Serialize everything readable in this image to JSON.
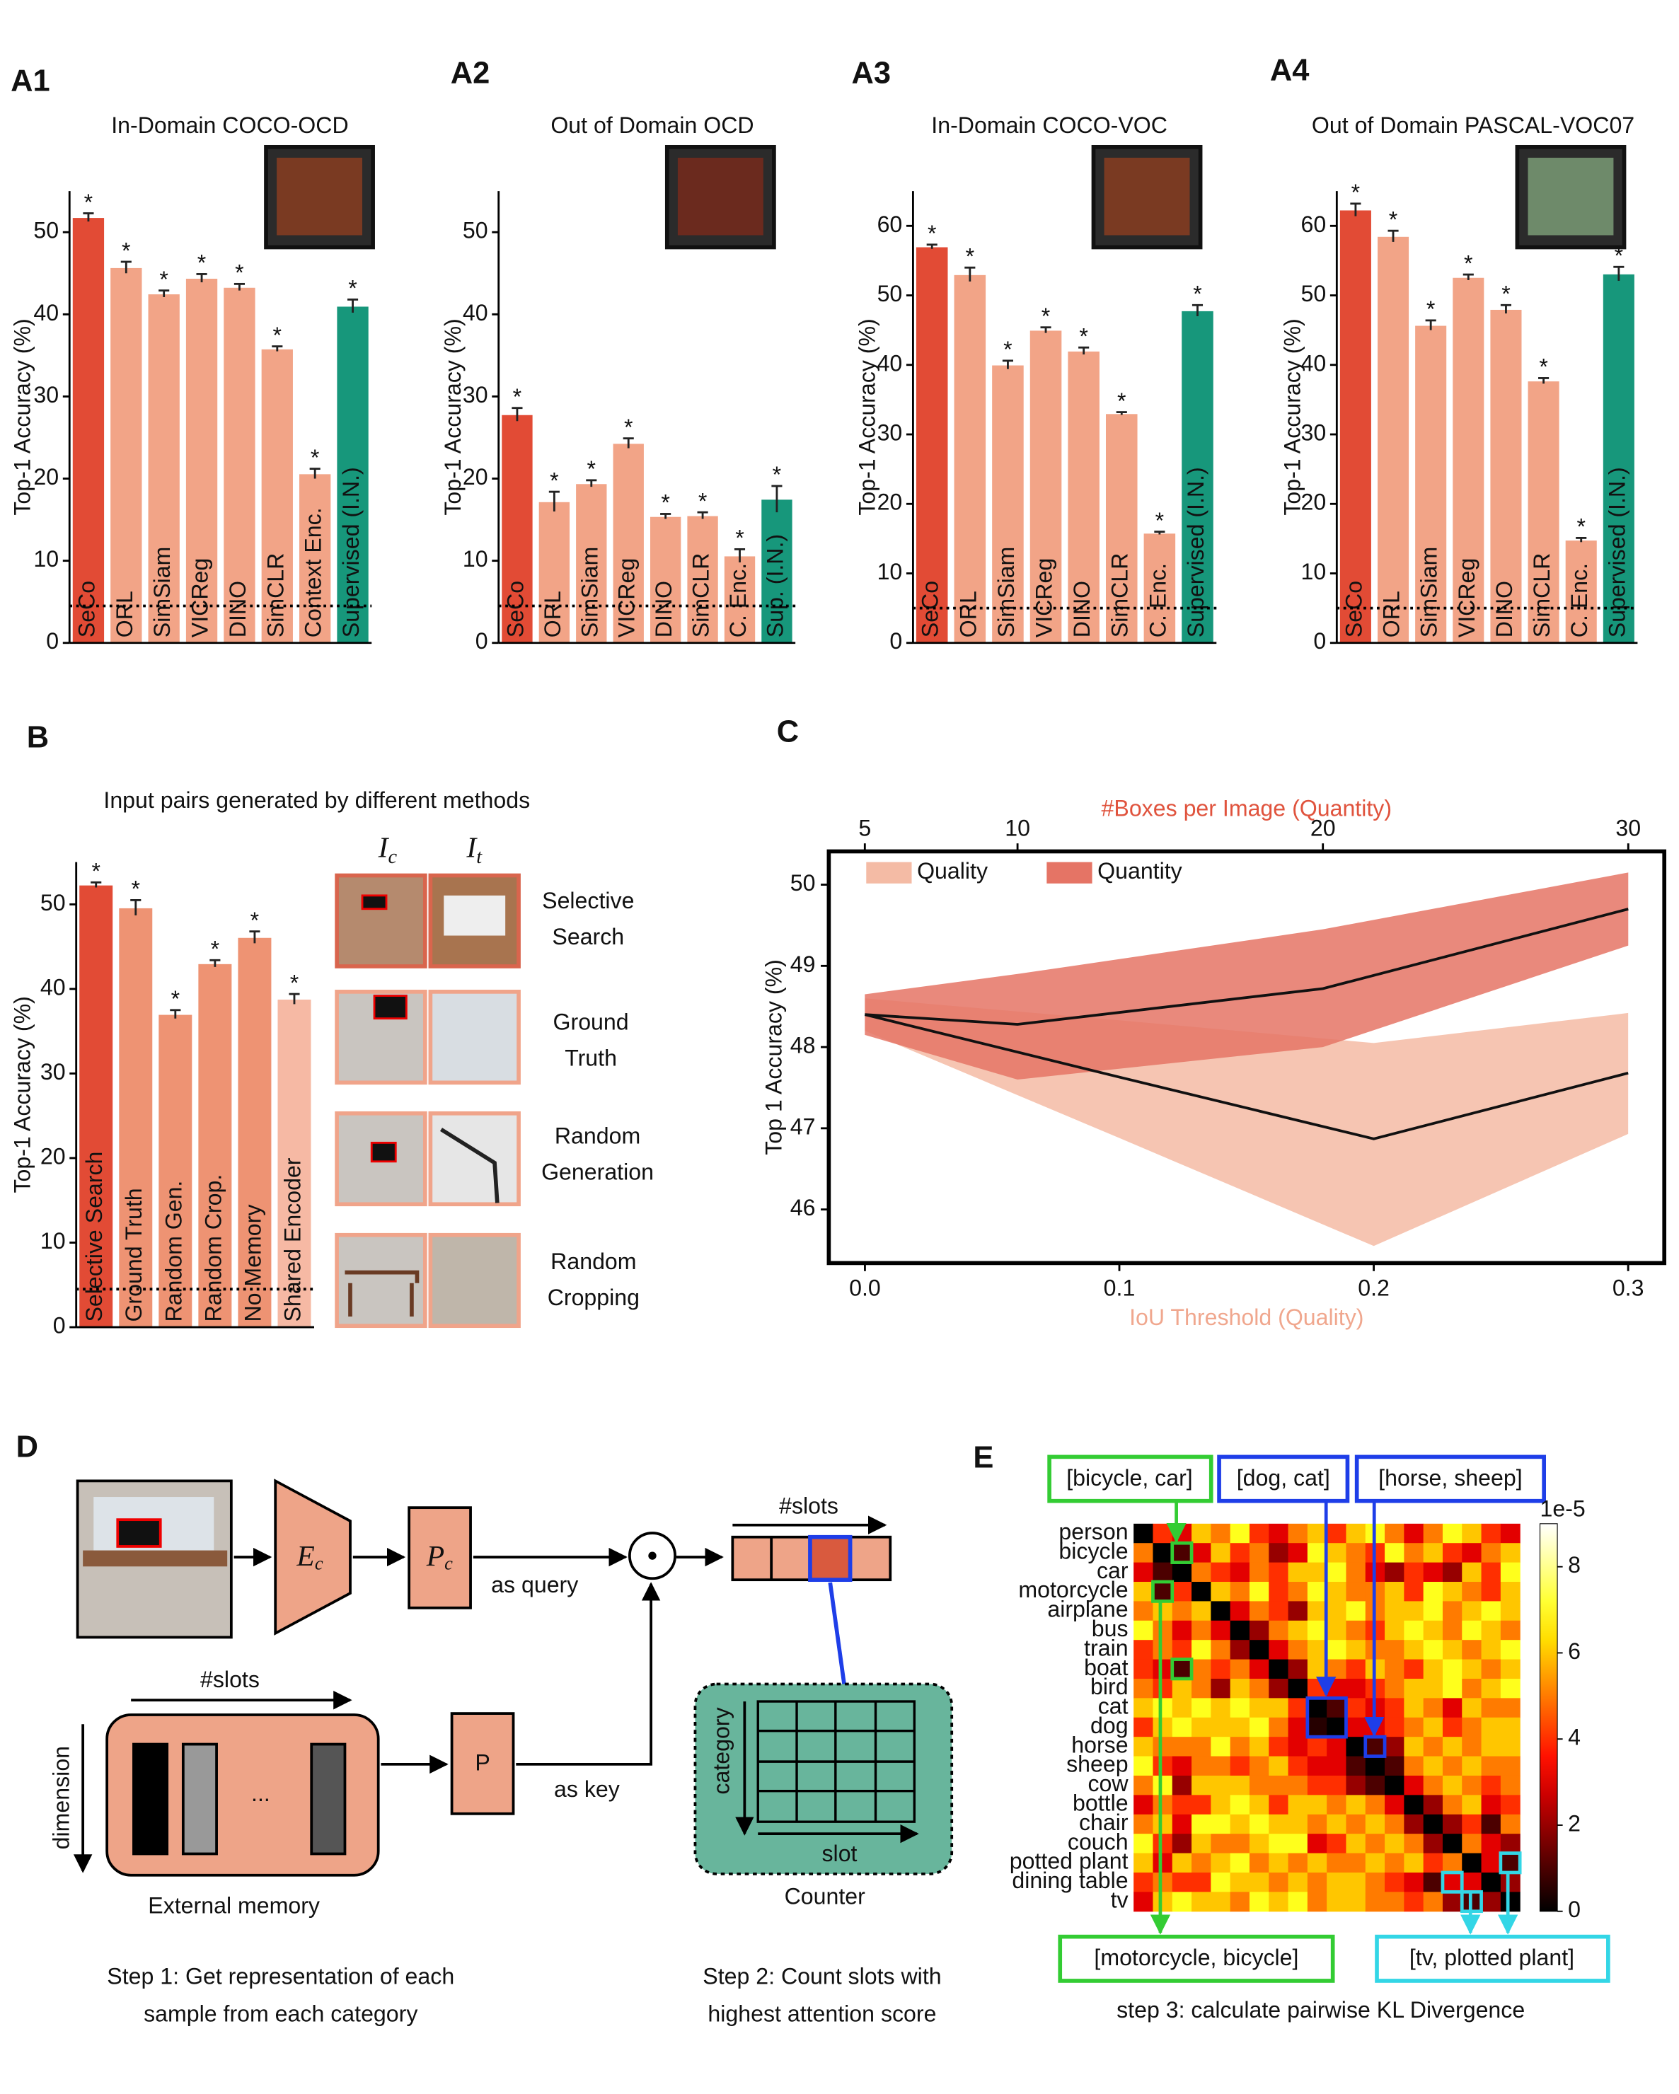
{
  "panel_labels": [
    "A1",
    "A2",
    "A3",
    "A4",
    "B",
    "C",
    "D",
    "E"
  ],
  "chart_data": [
    {
      "type": "bar",
      "title": "In-Domain COCO-OCD",
      "ylabel": "Top-1 Accuracy (%)",
      "categories": [
        "SeCo",
        "ORL",
        "SimSiam",
        "VICReg",
        "DINO",
        "SimCLR",
        "Context Enc.",
        "Supervised (I.N.)"
      ],
      "values": [
        51.8,
        45.7,
        42.5,
        44.4,
        43.3,
        35.8,
        20.6,
        41.0
      ],
      "errors": [
        0.5,
        0.7,
        0.4,
        0.5,
        0.4,
        0.3,
        0.6,
        0.8
      ],
      "markers": [
        "*",
        "*",
        "*",
        "*",
        "*",
        "*",
        "*",
        "*"
      ],
      "colors": [
        "#e24b35",
        "#f2a487",
        "#f2a487",
        "#f2a487",
        "#f2a487",
        "#f2a487",
        "#f2a487",
        "#17977b"
      ],
      "chance_level": 4.5,
      "ylim": [
        0,
        55
      ],
      "yticks": [
        0,
        10,
        20,
        30,
        40,
        50
      ]
    },
    {
      "type": "bar",
      "title": "Out of Domain OCD",
      "ylabel": "Top-1 Accuracy (%)",
      "categories": [
        "SeCo",
        "ORL",
        "SimSiam",
        "VICReg",
        "DINO",
        "SimCLR",
        "C. Enc.",
        "Sup. (I.N.)"
      ],
      "values": [
        27.8,
        17.2,
        19.4,
        24.3,
        15.4,
        15.5,
        10.6,
        17.5
      ],
      "errors": [
        0.8,
        1.2,
        0.4,
        0.6,
        0.3,
        0.4,
        0.8,
        1.6
      ],
      "markers": [
        "*",
        "*",
        "*",
        "*",
        "*",
        "*",
        "*",
        "*"
      ],
      "colors": [
        "#e24b35",
        "#f2a487",
        "#f2a487",
        "#f2a487",
        "#f2a487",
        "#f2a487",
        "#f2a487",
        "#17977b"
      ],
      "chance_level": 4.5,
      "ylim": [
        0,
        55
      ],
      "yticks": [
        0,
        10,
        20,
        30,
        40,
        50
      ]
    },
    {
      "type": "bar",
      "title": "In-Domain COCO-VOC",
      "ylabel": "Top-1 Accuracy (%)",
      "categories": [
        "SeCo",
        "ORL",
        "SimSiam",
        "VICReg",
        "DINO",
        "SimCLR",
        "C. Enc.",
        "Supervised (I.N.)"
      ],
      "values": [
        57.0,
        53.0,
        40.0,
        45.0,
        42.0,
        33.0,
        15.8,
        47.8
      ],
      "errors": [
        0.3,
        1.0,
        0.6,
        0.4,
        0.5,
        0.2,
        0.2,
        0.8
      ],
      "markers": [
        "*",
        "*",
        "*",
        "*",
        "*",
        "*",
        "*",
        "*"
      ],
      "colors": [
        "#e24b35",
        "#f2a487",
        "#f2a487",
        "#f2a487",
        "#f2a487",
        "#f2a487",
        "#f2a487",
        "#17977b"
      ],
      "chance_level": 5,
      "ylim": [
        0,
        65
      ],
      "yticks": [
        0,
        10,
        20,
        30,
        40,
        50,
        60
      ]
    },
    {
      "type": "bar",
      "title": "Out of Domain PASCAL-VOC07",
      "ylabel": "Top-1 Accuracy (%)",
      "categories": [
        "SeCo",
        "ORL",
        "SimSiam",
        "VICReg",
        "DINO",
        "SimCLR",
        "C. Enc.",
        "Supervised (I.N.)"
      ],
      "values": [
        62.3,
        58.5,
        45.7,
        52.6,
        48.0,
        37.7,
        14.8,
        53.1
      ],
      "errors": [
        0.9,
        0.8,
        0.7,
        0.4,
        0.6,
        0.4,
        0.3,
        1.0
      ],
      "markers": [
        "*",
        "*",
        "*",
        "*",
        "*",
        "*",
        "*",
        "*"
      ],
      "colors": [
        "#e24b35",
        "#f2a487",
        "#f2a487",
        "#f2a487",
        "#f2a487",
        "#f2a487",
        "#f2a487",
        "#17977b"
      ],
      "chance_level": 5,
      "ylim": [
        0,
        65
      ],
      "yticks": [
        0,
        10,
        20,
        30,
        40,
        50,
        60
      ]
    },
    {
      "type": "bar",
      "title": "Input pairs generated by different methods",
      "ylabel": "Top-1 Accuracy (%)",
      "categories": [
        "Selective Search",
        "Ground Truth",
        "Random Gen.",
        "Random Crop.",
        "No Memory",
        "Shared Encoder"
      ],
      "values": [
        52.3,
        49.6,
        37.0,
        43.0,
        46.1,
        38.8
      ],
      "errors": [
        0.3,
        0.9,
        0.5,
        0.4,
        0.7,
        0.6
      ],
      "markers": [
        "*",
        "*",
        "*",
        "*",
        "*",
        "*"
      ],
      "colors": [
        "#e24b35",
        "#ee9373",
        "#ee9373",
        "#ee9373",
        "#ee9373",
        "#f6b9a4"
      ],
      "chance_level": 4.5,
      "ylim": [
        0,
        55
      ],
      "yticks": [
        0,
        10,
        20,
        30,
        40,
        50
      ]
    },
    {
      "type": "line",
      "xlabel": "IoU Threshold (Quality)",
      "x2label": "#Boxes per Image (Quantity)",
      "ylabel": "Top 1 Accuracy (%)",
      "xlim": [
        -0.0142,
        0.3142
      ],
      "xticks": [
        {
          "value": 0,
          "label": "0.0"
        },
        {
          "value": 0.1,
          "label": "0.1"
        },
        {
          "value": 0.2,
          "label": "0.2"
        },
        {
          "value": 0.3,
          "label": "0.3"
        }
      ],
      "x2lim": [
        3.82,
        31.18
      ],
      "x2ticks": [
        5,
        10,
        20,
        30
      ],
      "ylim": [
        45.34,
        50.41
      ],
      "yticks": [
        46,
        47,
        48,
        49,
        50
      ],
      "legend": "upper left",
      "xlabel_color": "#f0a78e",
      "x2label_color": "#e0533d",
      "series": [
        {
          "name": "Quality",
          "color": "#f4bba5",
          "x": [
            0,
            0.1,
            0.2,
            0.3
          ],
          "values": [
            48.4,
            47.63,
            46.87,
            47.68
          ],
          "lower": [
            48.2,
            46.88,
            45.55,
            46.93
          ],
          "upper": [
            48.6,
            48.33,
            48.05,
            48.42
          ]
        },
        {
          "name": "Quantity",
          "color": "#e57465",
          "axis": "x2",
          "x": [
            5,
            10,
            20,
            30
          ],
          "values": [
            48.4,
            48.28,
            48.72,
            49.7
          ],
          "lower": [
            48.15,
            47.6,
            48.0,
            49.25
          ],
          "upper": [
            48.65,
            48.9,
            49.45,
            50.15
          ]
        }
      ]
    },
    {
      "type": "heatmap",
      "categories": [
        "person",
        "bicycle",
        "car",
        "motorcycle",
        "airplane",
        "bus",
        "train",
        "boat",
        "bird",
        "cat",
        "dog",
        "horse",
        "sheep",
        "cow",
        "bottle",
        "chair",
        "couch",
        "potted plant",
        "dining table",
        "tv"
      ],
      "values": [
        [
          0,
          4,
          3,
          6,
          5,
          7,
          4,
          3,
          5,
          6,
          4,
          6,
          7,
          5,
          3,
          5,
          7,
          6,
          4,
          3
        ],
        [
          5,
          0,
          1,
          3,
          6,
          4,
          5,
          2,
          3,
          7,
          6,
          5,
          4,
          7,
          5,
          6,
          4,
          3,
          5,
          6
        ],
        [
          3,
          1,
          0,
          5,
          4,
          3,
          5,
          4,
          6,
          6,
          7,
          5,
          3,
          2,
          4,
          3,
          2,
          6,
          4,
          7
        ],
        [
          6,
          1,
          4,
          0,
          6,
          5,
          7,
          4,
          5,
          7,
          6,
          5,
          5,
          6,
          4,
          7,
          6,
          5,
          4,
          6
        ],
        [
          5,
          6,
          5,
          6,
          0,
          3,
          5,
          4,
          2,
          6,
          6,
          7,
          5,
          6,
          6,
          7,
          5,
          6,
          7,
          6
        ],
        [
          7,
          5,
          3,
          5,
          3,
          0,
          2,
          5,
          6,
          7,
          6,
          5,
          4,
          6,
          7,
          6,
          5,
          7,
          6,
          5
        ],
        [
          4,
          5,
          4,
          7,
          5,
          2,
          0,
          3,
          5,
          6,
          7,
          6,
          5,
          5,
          6,
          7,
          6,
          5,
          6,
          7
        ],
        [
          4,
          3,
          1,
          5,
          4,
          5,
          3,
          0,
          2,
          6,
          5,
          4,
          6,
          5,
          4,
          6,
          7,
          6,
          5,
          6
        ],
        [
          5,
          4,
          6,
          5,
          2,
          6,
          5,
          2,
          0,
          4,
          3,
          3,
          4,
          5,
          6,
          6,
          7,
          5,
          6,
          7
        ],
        [
          6,
          7,
          6,
          7,
          6,
          7,
          6,
          6,
          4,
          0,
          1,
          4,
          3,
          4,
          6,
          5,
          3,
          6,
          5,
          5
        ],
        [
          4,
          6,
          7,
          6,
          6,
          6,
          7,
          5,
          3,
          0.5,
          0,
          3,
          3,
          4,
          5,
          6,
          4,
          5,
          6,
          6
        ],
        [
          6,
          5,
          5,
          5,
          7,
          5,
          6,
          4,
          3,
          4,
          3,
          0,
          1,
          2,
          6,
          5,
          6,
          5,
          6,
          6
        ],
        [
          7,
          4,
          3,
          5,
          5,
          4,
          5,
          6,
          4,
          3,
          3,
          1,
          0,
          1,
          5,
          6,
          5,
          6,
          5,
          5
        ],
        [
          5,
          7,
          2,
          6,
          6,
          6,
          5,
          5,
          5,
          4,
          4,
          2,
          1,
          0,
          3,
          5,
          6,
          5,
          4,
          5
        ],
        [
          3,
          5,
          4,
          4,
          6,
          7,
          6,
          4,
          6,
          6,
          5,
          6,
          5,
          3,
          0,
          2,
          5,
          6,
          3,
          4
        ],
        [
          5,
          6,
          3,
          7,
          7,
          6,
          7,
          6,
          6,
          5,
          6,
          5,
          6,
          5,
          2,
          0,
          2,
          4,
          1,
          5
        ],
        [
          7,
          4,
          2,
          6,
          5,
          5,
          6,
          7,
          7,
          3,
          4,
          6,
          5,
          6,
          5,
          2,
          0,
          5,
          3,
          2
        ],
        [
          6,
          3,
          6,
          5,
          6,
          7,
          5,
          6,
          5,
          6,
          5,
          5,
          6,
          5,
          6,
          4,
          5,
          0,
          3,
          1
        ],
        [
          4,
          5,
          4,
          4,
          7,
          6,
          6,
          5,
          6,
          5,
          6,
          6,
          5,
          4,
          3,
          1,
          3,
          3,
          0,
          2
        ],
        [
          3,
          6,
          7,
          6,
          6,
          5,
          7,
          6,
          7,
          5,
          6,
          6,
          5,
          5,
          4,
          5,
          2,
          1,
          2,
          0
        ]
      ],
      "clim": [
        0,
        9
      ],
      "cticks": [
        0,
        2,
        4,
        6,
        8
      ],
      "colorbar_label": "1e-5",
      "colormap": "hot",
      "annotations": [
        "[bicycle, car]",
        "[dog, cat]",
        "[horse, sheep]",
        "[motorcycle, bicycle]",
        "[tv, plotted plant]"
      ],
      "caption": "step 3: calculate pairwise KL Divergence"
    }
  ],
  "pairs_panel": {
    "headers": [
      {
        "main": "I",
        "sub": "c"
      },
      {
        "main": "I",
        "sub": "t"
      }
    ],
    "rows": [
      [
        "Selective",
        "Search"
      ],
      [
        "Ground",
        "Truth"
      ],
      [
        "Random",
        "Generation"
      ],
      [
        "Random",
        "Cropping"
      ]
    ]
  },
  "diagram": {
    "encoder": {
      "main": "E",
      "sub": "c"
    },
    "projector": {
      "main": "P",
      "sub": "c"
    },
    "query_label": "as query",
    "key_label": "as key",
    "key_projector": "P",
    "slots_label_top": "#slots",
    "slots_label_memory": "#slots",
    "dimension_label": "dimension",
    "ellipsis": "...",
    "memory_label": "External memory",
    "counter_axis_y": "category",
    "counter_axis_x": "slot",
    "counter_label": "Counter",
    "step1": [
      "Step 1: Get representation of each",
      "sample from each category"
    ],
    "step2": [
      "Step 2: Count slots with",
      "highest attention score"
    ]
  }
}
